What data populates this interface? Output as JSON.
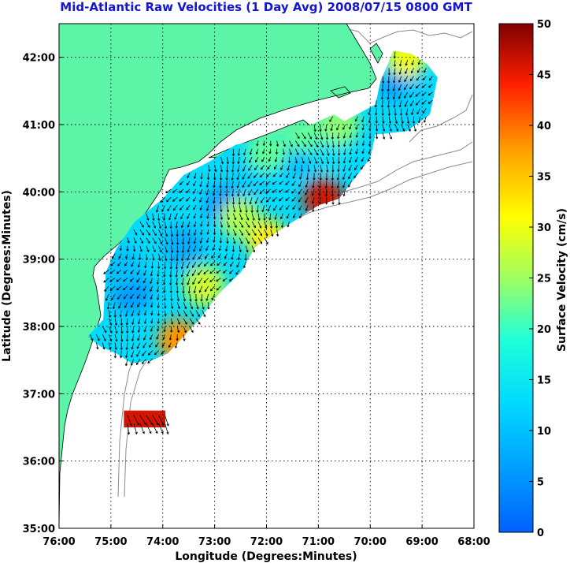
{
  "chart_data": {
    "type": "heatmap",
    "title": "Mid-Atlantic Raw Velocities (1 Day Avg) 2008/07/15 0800 GMT",
    "xlabel": "Longitude (Degrees:Minutes)",
    "ylabel": "Latitude (Degrees:Minutes)",
    "xlim": [
      -76,
      -68
    ],
    "ylim": [
      35,
      42.5
    ],
    "x_ticks": [
      {
        "value": -76,
        "label": "76:00"
      },
      {
        "value": -75,
        "label": "75:00"
      },
      {
        "value": -74,
        "label": "74:00"
      },
      {
        "value": -73,
        "label": "73:00"
      },
      {
        "value": -72,
        "label": "72:00"
      },
      {
        "value": -71,
        "label": "71:00"
      },
      {
        "value": -70,
        "label": "70:00"
      },
      {
        "value": -69,
        "label": "69:00"
      },
      {
        "value": -68,
        "label": "68:00"
      }
    ],
    "y_ticks": [
      {
        "value": 35,
        "label": "35:00"
      },
      {
        "value": 36,
        "label": "36:00"
      },
      {
        "value": 37,
        "label": "37:00"
      },
      {
        "value": 38,
        "label": "38:00"
      },
      {
        "value": 39,
        "label": "39:00"
      },
      {
        "value": 40,
        "label": "40:00"
      },
      {
        "value": 41,
        "label": "41:00"
      },
      {
        "value": 42,
        "label": "42:00"
      }
    ],
    "grid": "dotted",
    "colorbar": {
      "label": "Surface Velocity (cm/s)",
      "min": 0,
      "max": 50,
      "ticks": [
        "0",
        "5",
        "10",
        "15",
        "20",
        "25",
        "30",
        "35",
        "40",
        "45",
        "50"
      ],
      "placement": "right"
    },
    "land_color": "#5cf5a8",
    "coverage_outline": [
      [
        -75.45,
        37.85
      ],
      [
        -75.15,
        38.1
      ],
      [
        -75.1,
        38.8
      ],
      [
        -74.9,
        39.15
      ],
      [
        -74.55,
        39.55
      ],
      [
        -74.0,
        39.9
      ],
      [
        -73.6,
        40.25
      ],
      [
        -73.1,
        40.45
      ],
      [
        -72.6,
        40.7
      ],
      [
        -72.0,
        40.8
      ],
      [
        -71.4,
        40.9
      ],
      [
        -71.0,
        41.05
      ],
      [
        -70.7,
        41.15
      ],
      [
        -70.5,
        41.05
      ],
      [
        -69.9,
        41.3
      ],
      [
        -69.8,
        41.65
      ],
      [
        -69.55,
        42.1
      ],
      [
        -69.2,
        42.05
      ],
      [
        -68.9,
        41.9
      ],
      [
        -68.7,
        41.7
      ],
      [
        -68.85,
        41.15
      ],
      [
        -69.3,
        40.9
      ],
      [
        -69.9,
        40.85
      ],
      [
        -70.0,
        40.5
      ],
      [
        -70.3,
        40.2
      ],
      [
        -70.6,
        39.9
      ],
      [
        -71.0,
        39.8
      ],
      [
        -71.3,
        39.65
      ],
      [
        -71.8,
        39.4
      ],
      [
        -72.2,
        39.2
      ],
      [
        -72.5,
        38.8
      ],
      [
        -72.9,
        38.5
      ],
      [
        -73.3,
        38.1
      ],
      [
        -73.6,
        37.85
      ],
      [
        -73.9,
        37.6
      ],
      [
        -74.2,
        37.5
      ],
      [
        -74.6,
        37.45
      ],
      [
        -74.9,
        37.6
      ],
      [
        -75.2,
        37.7
      ]
    ],
    "speed_patches": [
      {
        "lon": -74.6,
        "lat": 38.5,
        "speed": 6
      },
      {
        "lon": -74.8,
        "lat": 38.9,
        "speed": 10
      },
      {
        "lon": -73.6,
        "lat": 39.2,
        "speed": 8
      },
      {
        "lon": -72.8,
        "lat": 39.8,
        "speed": 6
      },
      {
        "lon": -72.2,
        "lat": 40.2,
        "speed": 12
      },
      {
        "lon": -71.4,
        "lat": 40.5,
        "speed": 10
      },
      {
        "lon": -70.8,
        "lat": 40.6,
        "speed": 14
      },
      {
        "lon": -69.4,
        "lat": 41.6,
        "speed": 6
      },
      {
        "lon": -69.1,
        "lat": 41.3,
        "speed": 12
      },
      {
        "lon": -72.0,
        "lat": 40.6,
        "speed": 22
      },
      {
        "lon": -73.7,
        "lat": 37.8,
        "speed": 38
      },
      {
        "lon": -72.0,
        "lat": 39.3,
        "speed": 32
      },
      {
        "lon": -70.9,
        "lat": 39.9,
        "speed": 46
      },
      {
        "lon": -73.2,
        "lat": 38.6,
        "speed": 28
      },
      {
        "lon": -69.3,
        "lat": 42.0,
        "speed": 30
      },
      {
        "lon": -70.6,
        "lat": 41.0,
        "speed": 24
      },
      {
        "lon": -72.5,
        "lat": 39.6,
        "speed": 26
      },
      {
        "lon": -71.3,
        "lat": 40.9,
        "speed": 22
      }
    ],
    "isolated_patch": {
      "lon_min": -74.75,
      "lon_max": -73.95,
      "lat_min": 36.5,
      "lat_max": 36.75,
      "speed": 46
    },
    "vectors": {
      "spacing_deg": 0.12,
      "color": "#000000",
      "predominant_direction": "south-southwest"
    }
  }
}
